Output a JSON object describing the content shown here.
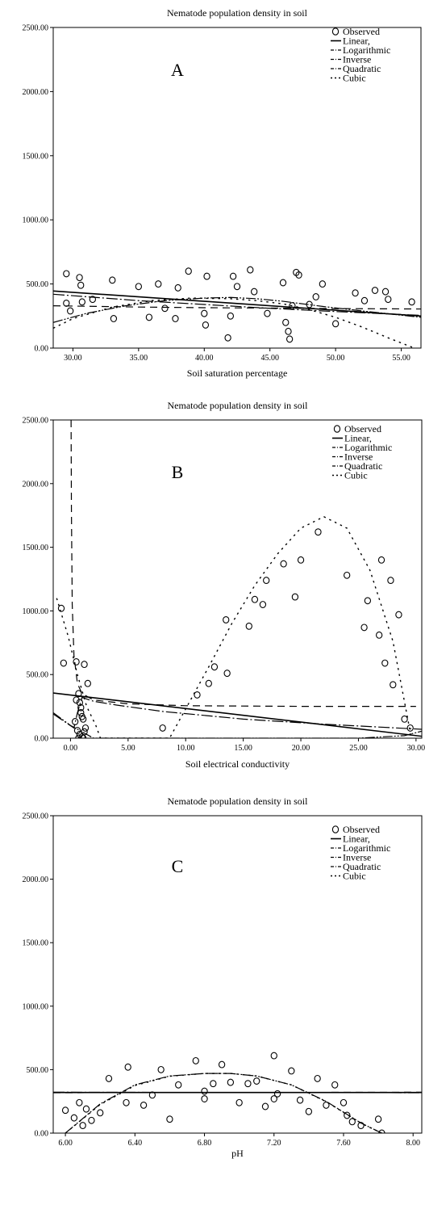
{
  "chart_data": [
    {
      "type": "scatter",
      "panel_label": "A",
      "title": "Nematode population density in soil",
      "xlabel": "Soil saturation percentage",
      "ylabel": "",
      "xlim": [
        28.5,
        56.5
      ],
      "ylim": [
        0,
        2500
      ],
      "xticks": [
        30,
        35,
        40,
        45,
        50,
        55
      ],
      "xtick_labels": [
        "30.00",
        "35.00",
        "40.00",
        "45.00",
        "50.00",
        "55.00"
      ],
      "yticks": [
        0,
        500,
        1000,
        1500,
        2000,
        2500
      ],
      "ytick_labels": [
        "0.00",
        "500.00",
        "1000.00",
        "1500.00",
        "2000.00",
        "2500.00"
      ],
      "legend": {
        "position": "top-right",
        "entries": [
          "Observed",
          "Linear,",
          "Logarithmic",
          "Inverse",
          "Quadratic",
          "Cubic"
        ]
      },
      "grid": false,
      "observed": {
        "x": [
          29.5,
          29.5,
          29.8,
          30.5,
          30.6,
          30.7,
          31.5,
          33.0,
          33.1,
          35.0,
          35.8,
          36.5,
          37.0,
          37.8,
          38.0,
          38.8,
          40.0,
          40.1,
          40.2,
          41.8,
          42.0,
          42.2,
          42.5,
          43.5,
          43.8,
          44.8,
          46.0,
          46.2,
          46.4,
          46.5,
          46.7,
          47.0,
          47.2,
          48.0,
          48.5,
          49.0,
          50.0,
          51.5,
          52.2,
          53.0,
          53.8,
          54.0,
          55.8
        ],
        "y": [
          580,
          350,
          290,
          550,
          490,
          360,
          380,
          530,
          230,
          480,
          240,
          500,
          310,
          230,
          470,
          600,
          270,
          180,
          560,
          80,
          250,
          560,
          480,
          610,
          440,
          270,
          510,
          200,
          130,
          70,
          330,
          590,
          570,
          340,
          400,
          500,
          190,
          430,
          370,
          450,
          440,
          380,
          360
        ]
      },
      "series": [
        {
          "name": "Linear,",
          "x": [
            28.5,
            56.5
          ],
          "y": [
            445,
            250
          ]
        },
        {
          "name": "Logarithmic",
          "x": [
            28.5,
            35,
            40,
            45,
            50,
            56.5
          ],
          "y": [
            420,
            370,
            340,
            310,
            285,
            255
          ]
        },
        {
          "name": "Inverse",
          "x": [
            28.5,
            35,
            40,
            45,
            50,
            56.5
          ],
          "y": [
            330,
            320,
            315,
            312,
            308,
            305
          ]
        },
        {
          "name": "Quadratic",
          "x": [
            28.5,
            31,
            34,
            37,
            40,
            42,
            44,
            46,
            49,
            52,
            56.5
          ],
          "y": [
            200,
            270,
            330,
            370,
            390,
            395,
            385,
            365,
            325,
            290,
            240
          ]
        },
        {
          "name": "Cubic",
          "x": [
            28.5,
            30,
            33,
            36,
            39,
            42,
            44,
            46,
            48,
            50,
            52,
            54,
            56
          ],
          "y": [
            155,
            230,
            320,
            370,
            390,
            385,
            370,
            345,
            300,
            240,
            165,
            80,
            0
          ]
        }
      ]
    },
    {
      "type": "scatter",
      "panel_label": "B",
      "title": "Nematode population density in soil",
      "xlabel": "Soil electrical conductivity",
      "ylabel": "",
      "xlim": [
        -1.5,
        30.5
      ],
      "ylim": [
        0,
        2500
      ],
      "xticks": [
        0,
        5,
        10,
        15,
        20,
        25,
        30
      ],
      "xtick_labels": [
        "0.00",
        "5.00",
        "10.00",
        "15.00",
        "20.00",
        "25.00",
        "30.00"
      ],
      "yticks": [
        0,
        500,
        1000,
        1500,
        2000,
        2500
      ],
      "ytick_labels": [
        "0.00",
        "500.00",
        "1000.00",
        "1500.00",
        "2000.00",
        "2500.00"
      ],
      "legend": {
        "position": "top-right",
        "entries": [
          "Observed",
          "Linear,",
          "Logarithmic",
          "Inverse",
          "Quadratic",
          "Cubic"
        ]
      },
      "grid": false,
      "observed": {
        "x": [
          -0.8,
          -0.6,
          0.5,
          0.7,
          0.8,
          0.9,
          1.0,
          1.1,
          1.2,
          0.4,
          0.6,
          0.8,
          1.0,
          1.3,
          1.5,
          0.5,
          0.9,
          1.2,
          0.7,
          1.1,
          8.0,
          11.0,
          12.0,
          12.5,
          13.5,
          13.6,
          15.5,
          16.0,
          16.7,
          17.0,
          18.5,
          19.5,
          20.0,
          21.5,
          24.0,
          25.5,
          25.8,
          26.8,
          27.0,
          27.3,
          27.8,
          28.0,
          28.5,
          29.0,
          29.5
        ],
        "y": [
          1020,
          590,
          600,
          350,
          280,
          200,
          170,
          150,
          580,
          130,
          60,
          30,
          10,
          80,
          430,
          300,
          240,
          50,
          0,
          0,
          80,
          340,
          430,
          560,
          930,
          510,
          880,
          1090,
          1050,
          1240,
          1370,
          1110,
          1400,
          1620,
          1280,
          870,
          1080,
          810,
          1400,
          590,
          1240,
          420,
          970,
          150,
          80
        ]
      },
      "series": [
        {
          "name": "Linear,",
          "x": [
            -1.5,
            30.5
          ],
          "y": [
            355,
            15
          ]
        },
        {
          "name": "Logarithmic",
          "x": [
            -1.5,
            0.3,
            0.6,
            1.0,
            2.0,
            4.0,
            8.0,
            15.0,
            22.0,
            30.5
          ],
          "y": [
            190,
            80,
            200,
            320,
            290,
            260,
            210,
            150,
            110,
            70
          ]
        },
        {
          "name": "Inverse",
          "x": [
            0.05,
            0.08,
            0.15,
            0.3,
            0.6,
            1.0,
            2.0,
            5.0,
            10.0,
            20.0,
            30.0
          ],
          "y": [
            2500,
            1800,
            1050,
            650,
            430,
            350,
            300,
            270,
            255,
            250,
            250
          ]
        },
        {
          "name": "Quadratic",
          "x": [
            -1.5,
            0,
            2,
            5,
            10,
            15,
            20,
            25,
            29,
            30.5
          ],
          "y": [
            200,
            100,
            0,
            0,
            0,
            0,
            0,
            0,
            20,
            55
          ]
        },
        {
          "name": "Cubic",
          "x": [
            -1.2,
            -0.2,
            0.6,
            1.4,
            2.2,
            2.6,
            8.6,
            10.0,
            12.0,
            14.0,
            16.0,
            18.0,
            20.0,
            22.0,
            24.0,
            26.0,
            28.0,
            29.6
          ],
          "y": [
            1100,
            800,
            500,
            250,
            100,
            0,
            0,
            230,
            560,
            900,
            1200,
            1450,
            1650,
            1740,
            1650,
            1320,
            760,
            0
          ]
        }
      ]
    },
    {
      "type": "scatter",
      "panel_label": "C",
      "title": "Nematode population density in soil",
      "xlabel": "pH",
      "ylabel": "",
      "xlim": [
        5.93,
        8.05
      ],
      "ylim": [
        0,
        2500
      ],
      "xticks": [
        6.0,
        6.4,
        6.8,
        7.2,
        7.6,
        8.0
      ],
      "xtick_labels": [
        "6.00",
        "6.40",
        "6.80",
        "7.20",
        "7.60",
        "8.00"
      ],
      "yticks": [
        0,
        500,
        1000,
        1500,
        2000,
        2500
      ],
      "ytick_labels": [
        "0.00",
        "500.00",
        "1000.00",
        "1500.00",
        "2000.00",
        "2500.00"
      ],
      "legend": {
        "position": "top-right",
        "entries": [
          "Observed",
          "Linear,",
          "Logarithmic",
          "Inverse",
          "Quadratic",
          "Cubic"
        ]
      },
      "grid": false,
      "observed": {
        "x": [
          6.0,
          6.05,
          6.08,
          6.1,
          6.12,
          6.15,
          6.2,
          6.25,
          6.35,
          6.36,
          6.45,
          6.5,
          6.55,
          6.6,
          6.65,
          6.75,
          6.8,
          6.8,
          6.85,
          6.9,
          6.95,
          7.0,
          7.05,
          7.1,
          7.15,
          7.2,
          7.2,
          7.22,
          7.3,
          7.35,
          7.4,
          7.45,
          7.5,
          7.55,
          7.6,
          7.62,
          7.65,
          7.7,
          7.8,
          7.82
        ],
        "y": [
          180,
          120,
          240,
          60,
          190,
          100,
          160,
          430,
          240,
          520,
          220,
          300,
          500,
          110,
          380,
          570,
          270,
          330,
          390,
          540,
          400,
          240,
          390,
          410,
          210,
          610,
          270,
          310,
          490,
          260,
          170,
          430,
          220,
          380,
          240,
          140,
          90,
          60,
          110,
          0
        ]
      },
      "series": [
        {
          "name": "Linear,",
          "x": [
            5.93,
            8.05
          ],
          "y": [
            320,
            320
          ]
        },
        {
          "name": "Logarithmic",
          "x": [
            5.93,
            8.05
          ],
          "y": [
            322,
            318
          ]
        },
        {
          "name": "Inverse",
          "x": [
            5.93,
            8.05
          ],
          "y": [
            318,
            322
          ]
        },
        {
          "name": "Quadratic",
          "x": [
            6.0,
            6.2,
            6.4,
            6.6,
            6.8,
            6.95,
            7.1,
            7.3,
            7.5,
            7.7,
            7.82
          ],
          "y": [
            0,
            230,
            380,
            450,
            470,
            470,
            450,
            380,
            250,
            80,
            0
          ]
        },
        {
          "name": "Cubic",
          "x": [
            6.0,
            6.2,
            6.4,
            6.6,
            6.8,
            6.95,
            7.1,
            7.3,
            7.5,
            7.7,
            7.82
          ],
          "y": [
            0,
            225,
            375,
            448,
            470,
            470,
            450,
            380,
            248,
            78,
            0
          ]
        }
      ]
    }
  ]
}
